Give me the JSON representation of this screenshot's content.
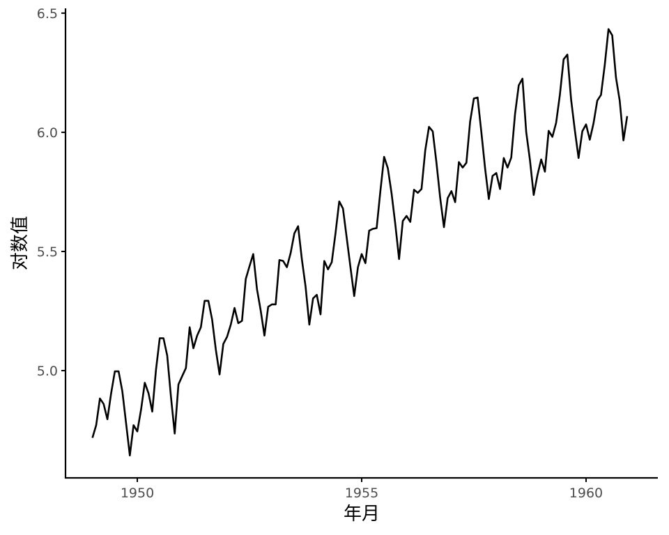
{
  "chart_data": {
    "type": "line",
    "xlabel": "年月",
    "ylabel": "对数值",
    "x_ticks": [
      1950,
      1955,
      1960
    ],
    "x_tick_labels": [
      "1950",
      "1955",
      "1960"
    ],
    "y_ticks": [
      5.0,
      5.5,
      6.0,
      6.5
    ],
    "y_tick_labels": [
      "5.0",
      "5.5",
      "6.0",
      "6.5"
    ],
    "xlim": [
      1948.4,
      1961.6
    ],
    "ylim": [
      4.55,
      6.52
    ],
    "grid": false,
    "legend": "none",
    "line_color": "#000000",
    "series": [
      {
        "x_start": 1949.0,
        "x_step": 0.0833333,
        "values": [
          4.718,
          4.771,
          4.883,
          4.86,
          4.796,
          4.905,
          4.997,
          4.997,
          4.913,
          4.779,
          4.644,
          4.771,
          4.745,
          4.836,
          4.949,
          4.905,
          4.828,
          5.004,
          5.136,
          5.136,
          5.063,
          4.89,
          4.736,
          4.942,
          4.977,
          5.011,
          5.182,
          5.094,
          5.147,
          5.182,
          5.293,
          5.293,
          5.215,
          5.088,
          4.984,
          5.112,
          5.142,
          5.193,
          5.263,
          5.199,
          5.209,
          5.384,
          5.438,
          5.489,
          5.342,
          5.252,
          5.147,
          5.268,
          5.278,
          5.278,
          5.464,
          5.46,
          5.434,
          5.493,
          5.576,
          5.606,
          5.468,
          5.352,
          5.193,
          5.303,
          5.318,
          5.236,
          5.46,
          5.425,
          5.455,
          5.576,
          5.71,
          5.68,
          5.557,
          5.434,
          5.313,
          5.434,
          5.489,
          5.451,
          5.587,
          5.595,
          5.598,
          5.753,
          5.897,
          5.849,
          5.743,
          5.613,
          5.468,
          5.628,
          5.649,
          5.624,
          5.759,
          5.746,
          5.762,
          5.924,
          6.023,
          6.004,
          5.872,
          5.724,
          5.602,
          5.724,
          5.753,
          5.707,
          5.875,
          5.852,
          5.872,
          6.045,
          6.142,
          6.146,
          6.001,
          5.849,
          5.72,
          5.817,
          5.829,
          5.762,
          5.892,
          5.852,
          5.894,
          6.075,
          6.197,
          6.225,
          6.001,
          5.883,
          5.737,
          5.82,
          5.886,
          5.835,
          6.006,
          5.981,
          6.04,
          6.157,
          6.306,
          6.326,
          6.138,
          6.009,
          5.892,
          6.004,
          6.033,
          5.969,
          6.038,
          6.133,
          6.157,
          6.282,
          6.433,
          6.407,
          6.23,
          6.133,
          5.966,
          6.068
        ]
      }
    ]
  }
}
